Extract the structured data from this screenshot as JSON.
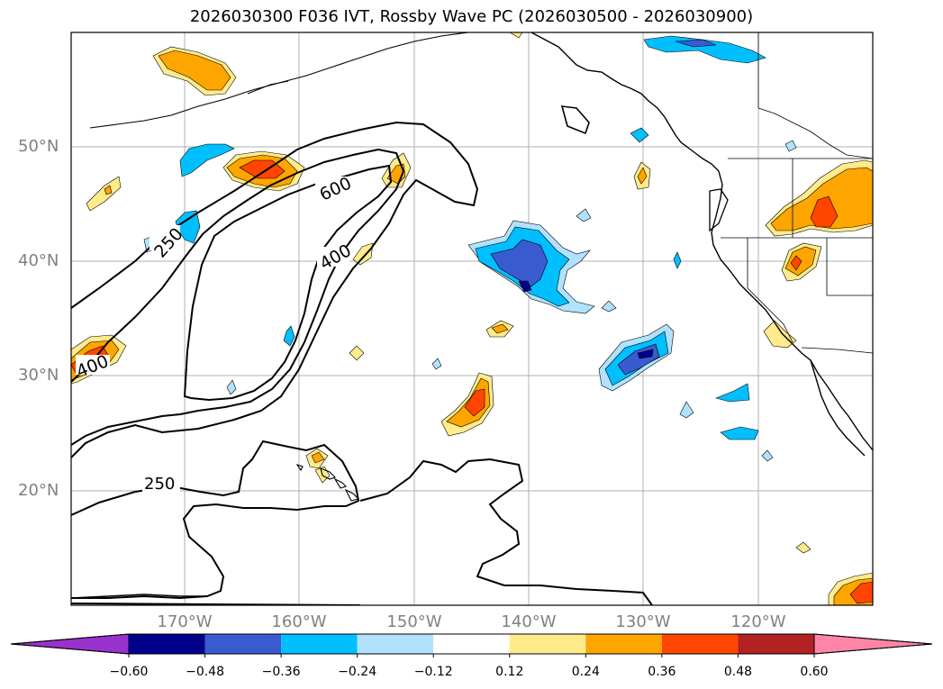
{
  "title": "2026030300 F036 IVT, Rossby Wave PC (2026030500 - 2026030900)",
  "lat_labels": [
    "50°N",
    "40°N",
    "30°N",
    "20°N"
  ],
  "lon_labels": [
    "170°W",
    "160°W",
    "150°W",
    "140°W",
    "130°W",
    "120°W"
  ],
  "contour_labels": [
    "600",
    "400",
    "250",
    "400",
    "250"
  ],
  "colorbar": {
    "ticks": [
      "−0.60",
      "−0.48",
      "−0.36",
      "−0.24",
      "−0.12",
      "0.12",
      "0.24",
      "0.36",
      "0.48",
      "0.60"
    ],
    "colors": [
      "#9932cc",
      "#00008b",
      "#3a5bd0",
      "#00bfff",
      "#b0e2ff",
      "#ffffff",
      "#ffeb8a",
      "#ffa500",
      "#ff4500",
      "#b22222",
      "#ff85a8"
    ]
  }
}
